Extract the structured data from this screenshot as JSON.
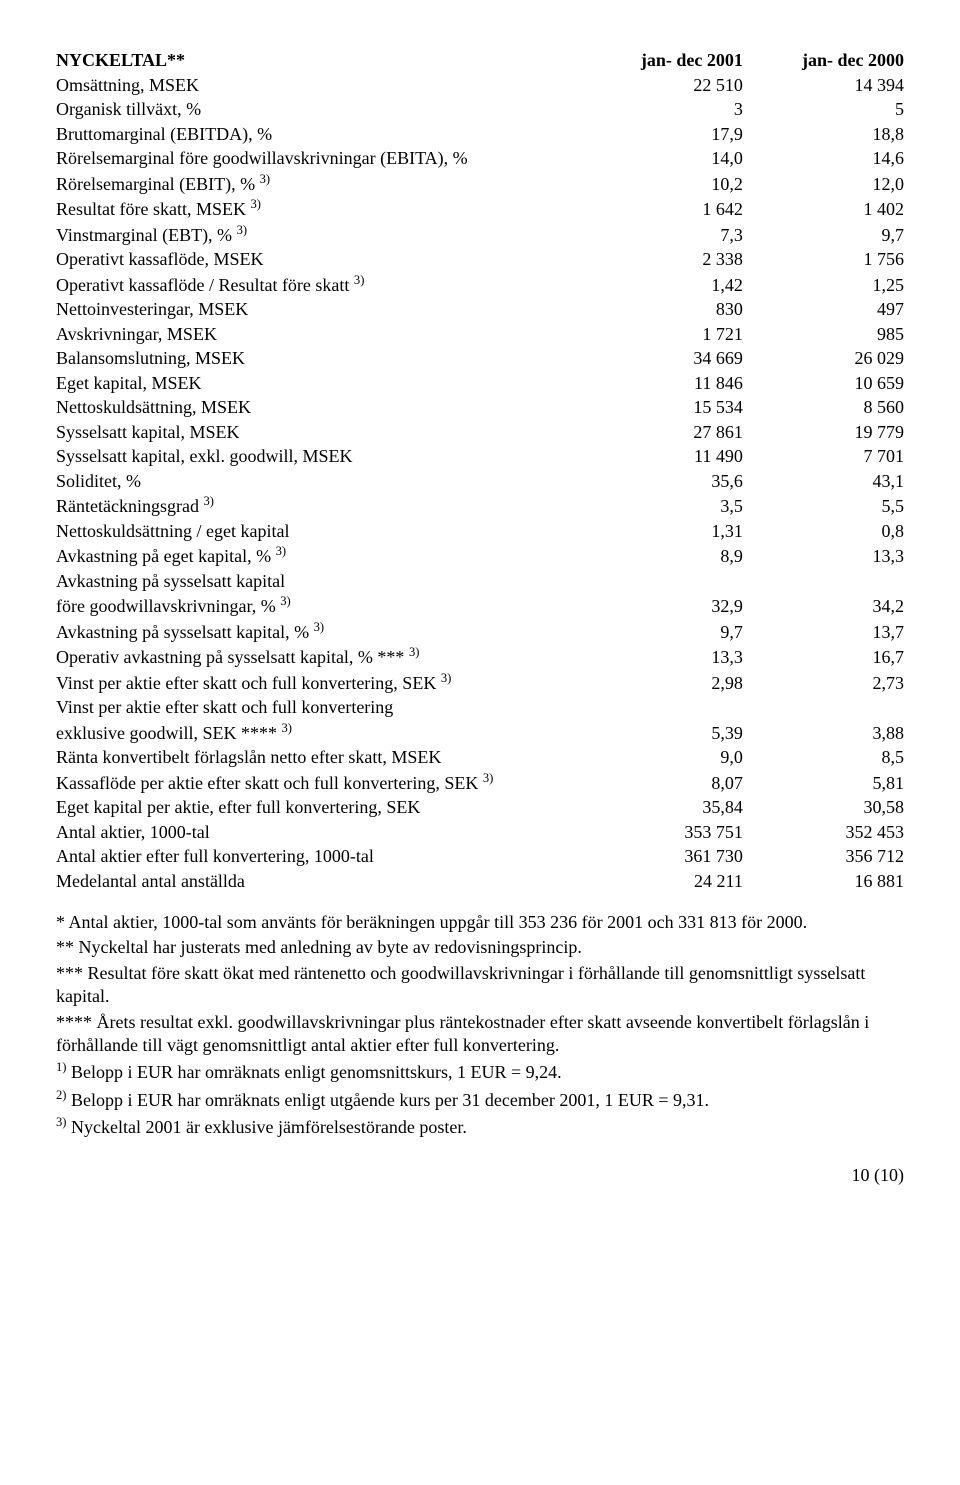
{
  "header": {
    "title": "NYCKELTAL**",
    "col1": "jan- dec 2001",
    "col2": "jan- dec 2000"
  },
  "rows": [
    {
      "label": "Omsättning, MSEK",
      "sup": "",
      "v1": "22 510",
      "v2": "14 394"
    },
    {
      "label": "Organisk tillväxt, %",
      "sup": "",
      "v1": "3",
      "v2": "5"
    },
    {
      "label": "Bruttomarginal (EBITDA), %",
      "sup": "",
      "v1": "17,9",
      "v2": "18,8"
    },
    {
      "label": "Rörelsemarginal före goodwillavskrivningar (EBITA), %",
      "sup": "",
      "v1": "14,0",
      "v2": "14,6"
    },
    {
      "label": "Rörelsemarginal (EBIT), %",
      "sup": "3)",
      "v1": "10,2",
      "v2": "12,0"
    },
    {
      "label": "Resultat före skatt, MSEK",
      "sup": "3)",
      "v1": "1 642",
      "v2": "1 402"
    },
    {
      "label": "Vinstmarginal (EBT), %",
      "sup": "3)",
      "v1": "7,3",
      "v2": "9,7"
    },
    {
      "label": "Operativt kassaflöde, MSEK",
      "sup": "",
      "v1": "2 338",
      "v2": "1 756"
    },
    {
      "label": "Operativt kassaflöde / Resultat före skatt",
      "sup": "3)",
      "v1": "1,42",
      "v2": "1,25"
    },
    {
      "label": "Nettoinvesteringar, MSEK",
      "sup": "",
      "v1": "830",
      "v2": "497"
    },
    {
      "label": "Avskrivningar, MSEK",
      "sup": "",
      "v1": "1 721",
      "v2": "985"
    },
    {
      "label": "Balansomslutning, MSEK",
      "sup": "",
      "v1": "34 669",
      "v2": "26 029"
    },
    {
      "label": "Eget kapital, MSEK",
      "sup": "",
      "v1": "11 846",
      "v2": "10 659"
    },
    {
      "label": "Nettoskuldsättning, MSEK",
      "sup": "",
      "v1": "15 534",
      "v2": "8 560"
    },
    {
      "label": "Sysselsatt kapital, MSEK",
      "sup": "",
      "v1": "27 861",
      "v2": "19 779"
    },
    {
      "label": "Sysselsatt kapital, exkl. goodwill, MSEK",
      "sup": "",
      "v1": "11 490",
      "v2": "7 701"
    },
    {
      "label": "Soliditet, %",
      "sup": "",
      "v1": "35,6",
      "v2": "43,1"
    },
    {
      "label": "Räntetäckningsgrad",
      "sup": "3)",
      "v1": "3,5",
      "v2": "5,5"
    },
    {
      "label": "Nettoskuldsättning / eget kapital",
      "sup": "",
      "v1": "1,31",
      "v2": "0,8"
    },
    {
      "label": "Avkastning på eget kapital, %",
      "sup": "3)",
      "v1": "8,9",
      "v2": "13,3"
    },
    {
      "label": "Avkastning på sysselsatt kapital",
      "sup": "",
      "v1": "",
      "v2": ""
    },
    {
      "label": "före goodwillavskrivningar, %",
      "sup": "3)",
      "v1": "32,9",
      "v2": "34,2"
    },
    {
      "label": "Avkastning på sysselsatt kapital, %",
      "sup": "3)",
      "v1": "9,7",
      "v2": "13,7"
    },
    {
      "label": "Operativ avkastning på sysselsatt kapital, % ***",
      "sup": "3)",
      "v1": "13,3",
      "v2": "16,7"
    },
    {
      "label": "Vinst per aktie efter skatt och full konvertering, SEK",
      "sup": "3)",
      "v1": "2,98",
      "v2": "2,73"
    },
    {
      "label": "Vinst per aktie efter skatt och full konvertering",
      "sup": "",
      "v1": "",
      "v2": ""
    },
    {
      "label": "exklusive goodwill, SEK ****",
      "sup": "3)",
      "v1": "5,39",
      "v2": "3,88"
    },
    {
      "label": "Ränta konvertibelt förlagslån netto efter skatt, MSEK",
      "sup": "",
      "v1": "9,0",
      "v2": "8,5"
    },
    {
      "label": "Kassaflöde per aktie efter skatt och full konvertering, SEK",
      "sup": "3)",
      "v1": "8,07",
      "v2": "5,81"
    },
    {
      "label": "Eget kapital per aktie, efter full konvertering, SEK",
      "sup": "",
      "v1": "35,84",
      "v2": "30,58"
    },
    {
      "label": "Antal aktier, 1000-tal",
      "sup": "",
      "v1": "353 751",
      "v2": "352 453"
    },
    {
      "label": "Antal aktier efter full konvertering, 1000-tal",
      "sup": "",
      "v1": "361 730",
      "v2": "356 712"
    },
    {
      "label": "Medelantal antal anställda",
      "sup": "",
      "v1": "24 211",
      "v2": "16 881"
    }
  ],
  "notes": {
    "n1": "* Antal aktier, 1000-tal som använts för beräkningen uppgår till 353 236 för 2001 och 331 813 för 2000.",
    "n2": "** Nyckeltal har justerats med anledning av byte av redovisningsprincip.",
    "n3": "*** Resultat före skatt ökat med räntenetto och goodwillavskrivningar i förhållande till genomsnittligt sysselsatt kapital.",
    "n4": "**** Årets resultat exkl. goodwillavskrivningar plus räntekostnader efter skatt avseende konvertibelt förlagslån i förhållande till vägt genomsnittligt antal aktier efter full konvertering.",
    "n5_pre": "1)",
    "n5": " Belopp i EUR har omräknats enligt genomsnittskurs, 1 EUR = 9,24.",
    "n6_pre": "2)",
    "n6": " Belopp i EUR har omräknats enligt utgående kurs per 31 december 2001, 1 EUR = 9,31.",
    "n7_pre": "3)",
    "n7": " Nyckeltal 2001 är exklusive jämförelsestörande poster."
  },
  "page": "10 (10)"
}
